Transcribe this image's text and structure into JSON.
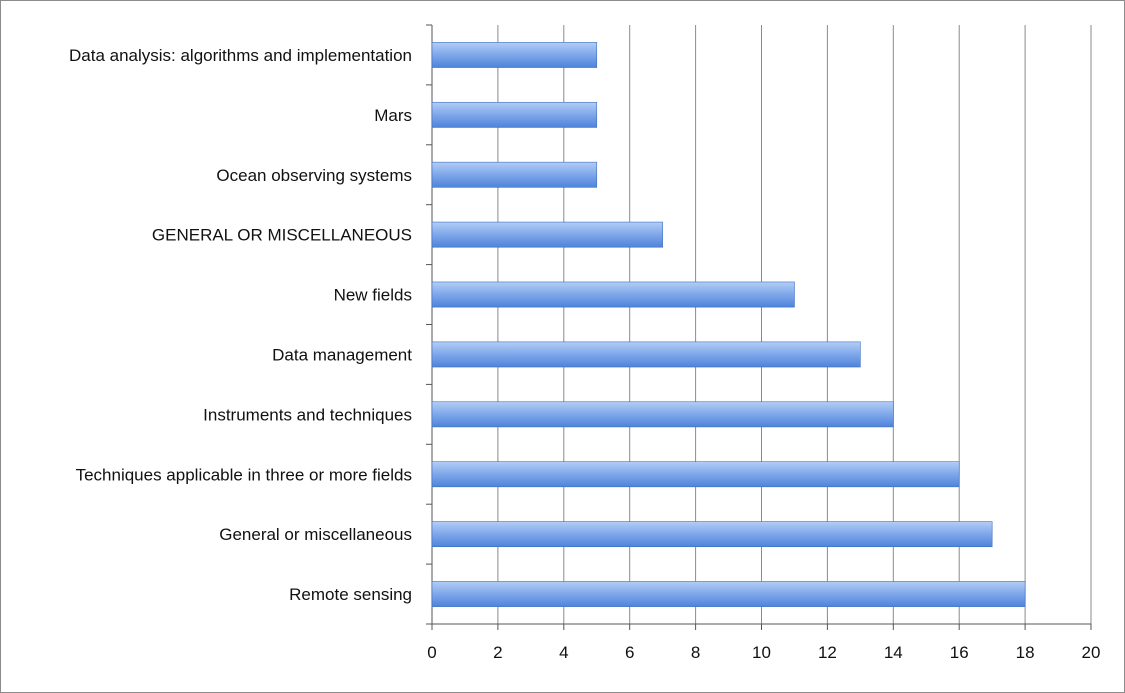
{
  "chart_data": {
    "type": "bar",
    "orientation": "horizontal",
    "title": "",
    "xlabel": "",
    "ylabel": "",
    "categories": [
      "Data analysis: algorithms and implementation",
      "Mars",
      "Ocean observing systems",
      "GENERAL OR MISCELLANEOUS",
      "New fields",
      "Data management",
      "Instruments and techniques",
      "Techniques applicable in three or more fields",
      "General or miscellaneous",
      "Remote sensing"
    ],
    "values": [
      5,
      5,
      5,
      7,
      11,
      13,
      14,
      16,
      17,
      18
    ],
    "xlim": [
      0,
      20
    ],
    "xticks": [
      "0",
      "2",
      "4",
      "6",
      "8",
      "10",
      "12",
      "14",
      "16",
      "18",
      "20"
    ],
    "grid": "vertical",
    "legend": "none",
    "colors": {
      "bar_light": "#b3cdf5",
      "bar_mid": "#7ea7ea",
      "bar_dark": "#4f83d9",
      "bar_edge": "#3f6fbf",
      "gridline": "#8a8a8a",
      "axis": "#555555"
    }
  }
}
